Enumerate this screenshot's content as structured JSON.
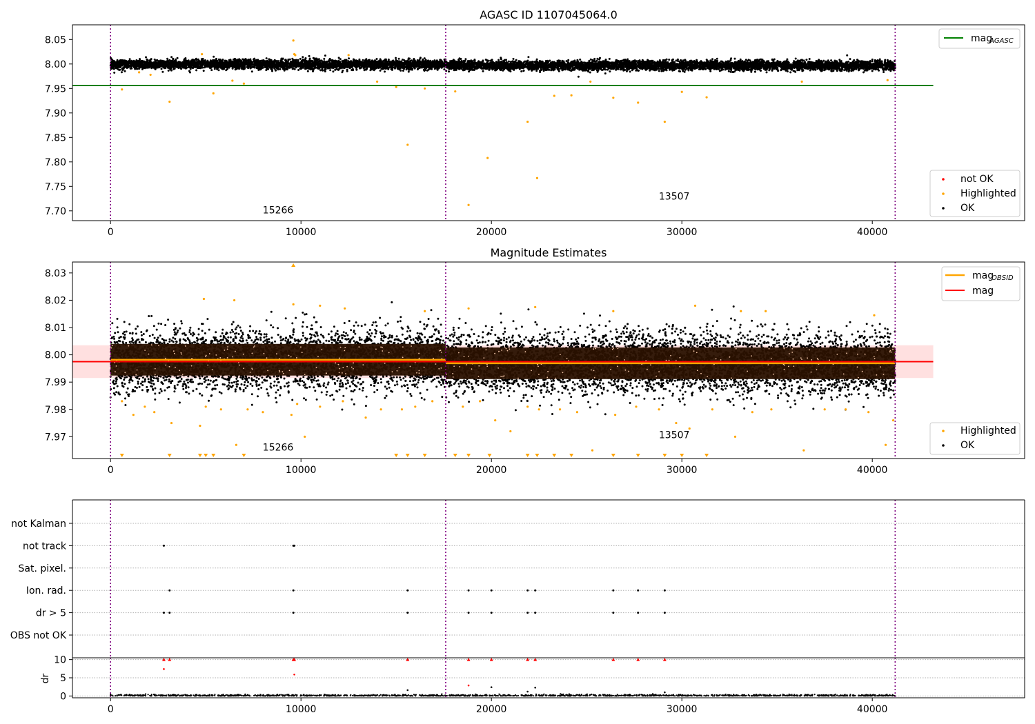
{
  "colors": {
    "ok": "#000000",
    "highlighted": "#ffa500",
    "not_ok": "#ff0000",
    "mag_agasc": "#008000",
    "mag_obsid": "#ffa500",
    "mag": "#ff0000",
    "mag_band": "#ffcccc",
    "obs_divider": "#800080",
    "grid": "#b0b0b0"
  },
  "chart_data": [
    {
      "type": "scatter",
      "title": "AGASC ID 1107045064.0",
      "xlim": [
        -2000,
        48000
      ],
      "ylim": [
        7.68,
        8.08
      ],
      "xticks": [
        0,
        10000,
        20000,
        30000,
        40000
      ],
      "xtick_labels": [
        "0",
        "10000",
        "20000",
        "30000",
        "40000"
      ],
      "yticks": [
        7.7,
        7.75,
        7.8,
        7.85,
        7.9,
        7.95,
        8.0,
        8.05
      ],
      "ytick_labels": [
        "7.70",
        "7.75",
        "7.80",
        "7.85",
        "7.90",
        "7.95",
        "8.00",
        "8.05"
      ],
      "legend_upper": {
        "position": "upper right",
        "entries": [
          {
            "label_main": "mag",
            "label_sub": "AGASC",
            "style": "line",
            "color_key": "mag_agasc"
          }
        ]
      },
      "legend_lower": {
        "position": "lower right",
        "entries": [
          {
            "label": "not OK",
            "style": "dot",
            "color_key": "not_ok"
          },
          {
            "label": "Highlighted",
            "style": "dot",
            "color_key": "highlighted"
          },
          {
            "label": "OK",
            "style": "dot",
            "color_key": "ok"
          }
        ]
      },
      "obs_boundaries": [
        0,
        17600,
        41200
      ],
      "obs_labels": [
        {
          "text": "15266",
          "x": 8800,
          "y": 7.695
        },
        {
          "text": "13507",
          "x": 29600,
          "y": 7.723
        }
      ],
      "mag_agasc": {
        "value": 7.956,
        "x_range": [
          -2000,
          43200
        ]
      },
      "ok_band": {
        "segments": [
          {
            "x_range": [
              0,
              17600
            ],
            "center": 7.999,
            "spread": 0.008
          },
          {
            "x_range": [
              17600,
              41200
            ],
            "center": 7.997,
            "spread": 0.008
          }
        ]
      },
      "highlighted": {
        "x": [
          600,
          3100,
          5400,
          6400,
          7000,
          9600,
          9650,
          14000,
          15000,
          15600,
          16500,
          18100,
          19800,
          21900,
          22400,
          23300,
          24200,
          25200,
          26400,
          27700,
          29100,
          30000,
          31300,
          36300,
          40800,
          4800,
          9700,
          12500,
          1500,
          2100
        ],
        "y": [
          7.948,
          7.923,
          7.94,
          7.966,
          7.96,
          8.048,
          8.02,
          7.964,
          7.953,
          7.835,
          7.95,
          7.944,
          7.808,
          7.882,
          7.767,
          7.935,
          7.936,
          7.964,
          7.931,
          7.921,
          7.882,
          7.943,
          7.932,
          7.964,
          7.967,
          8.02,
          8.018,
          8.018,
          7.983,
          7.978
        ]
      },
      "extra_highlighted": {
        "x": 18800,
        "y": 7.712
      }
    },
    {
      "type": "scatter",
      "title": "Magnitude Estimates",
      "xlim": [
        -2000,
        48000
      ],
      "ylim": [
        7.962,
        8.034
      ],
      "xticks": [
        0,
        10000,
        20000,
        30000,
        40000
      ],
      "xtick_labels": [
        "0",
        "10000",
        "20000",
        "30000",
        "40000"
      ],
      "yticks": [
        7.97,
        7.98,
        7.99,
        8.0,
        8.01,
        8.02,
        8.03
      ],
      "ytick_labels": [
        "7.97",
        "7.98",
        "7.99",
        "8.00",
        "8.01",
        "8.02",
        "8.03"
      ],
      "legend_upper": {
        "position": "upper right",
        "entries": [
          {
            "label_main": "mag",
            "label_sub": "OBSID",
            "style": "line",
            "color_key": "mag_obsid"
          },
          {
            "label": "mag",
            "style": "line",
            "color_key": "mag"
          }
        ]
      },
      "legend_lower": {
        "position": "lower right",
        "entries": [
          {
            "label": "Highlighted",
            "style": "dot",
            "color_key": "highlighted"
          },
          {
            "label": "OK",
            "style": "dot",
            "color_key": "ok"
          }
        ]
      },
      "obs_boundaries": [
        0,
        17600,
        41200
      ],
      "obs_labels": [
        {
          "text": "15266",
          "x": 8800,
          "y": 7.9649
        },
        {
          "text": "13507",
          "x": 29600,
          "y": 7.9695
        }
      ],
      "mag": {
        "value": 7.9975,
        "x_range": [
          -2000,
          43200
        ],
        "band": [
          7.9915,
          8.0035
        ]
      },
      "mag_obsid": [
        {
          "x_range": [
            0,
            17600
          ],
          "value": 7.9982
        },
        {
          "x_range": [
            17600,
            41200
          ],
          "value": 7.9969
        }
      ],
      "ok_band": {
        "segments": [
          {
            "x_range": [
              0,
              17600
            ],
            "center": 7.9982,
            "spread": 0.0055
          },
          {
            "x_range": [
              17600,
              41200
            ],
            "center": 7.9969,
            "spread": 0.0055
          }
        ]
      },
      "highlighted": {
        "x": [
          600,
          1200,
          1800,
          2300,
          3200,
          4700,
          5000,
          5800,
          6600,
          7200,
          8000,
          9500,
          9800,
          10200,
          11000,
          12200,
          13400,
          14200,
          15300,
          16000,
          16900,
          18500,
          19400,
          20200,
          21000,
          21900,
          22500,
          23600,
          24500,
          25300,
          26500,
          27600,
          28800,
          29700,
          30400,
          31600,
          32800,
          33700,
          34700,
          36400,
          37500,
          38600,
          39800,
          40700,
          41100,
          4900,
          6500,
          9600,
          11000,
          12300,
          16500,
          18800,
          22300,
          26400,
          30700,
          33100,
          34400,
          40100
        ],
        "y": [
          7.983,
          7.978,
          7.981,
          7.979,
          7.975,
          7.974,
          7.981,
          7.98,
          7.967,
          7.98,
          7.979,
          7.978,
          7.982,
          7.97,
          7.981,
          7.983,
          7.977,
          7.98,
          7.98,
          7.981,
          7.983,
          7.981,
          7.983,
          7.976,
          7.972,
          7.981,
          7.98,
          7.98,
          7.979,
          7.965,
          7.978,
          7.981,
          7.98,
          7.975,
          7.973,
          7.98,
          7.97,
          7.979,
          7.98,
          7.965,
          7.98,
          7.98,
          7.979,
          7.967,
          7.976,
          8.0205,
          8.02,
          8.0185,
          8.018,
          8.017,
          8.016,
          8.017,
          8.0175,
          8.016,
          8.018,
          8.016,
          8.016,
          8.0145
        ]
      },
      "clipped_low_x": [
        600,
        3100,
        4700,
        5000,
        5400,
        7000,
        15000,
        15600,
        16500,
        18100,
        18800,
        19900,
        21900,
        22400,
        23300,
        24200,
        26400,
        27700,
        29100,
        30000,
        31300
      ],
      "clipped_high_x": [
        9600
      ]
    },
    {
      "type": "scatter",
      "title": "",
      "xlim": [
        -2000,
        48000
      ],
      "categories": [
        "not Kalman",
        "not track",
        "Sat. pixel.",
        "Ion. rad.",
        "dr > 5",
        "OBS not OK"
      ],
      "obs_boundaries": [
        0,
        17600,
        41200
      ],
      "flag_points": {
        "not track": [
          2800,
          9600,
          9650
        ],
        "Ion. rad.": [
          3100,
          9600,
          15600,
          18800,
          20000,
          21900,
          22300,
          26400,
          27700,
          29100
        ],
        "dr > 5": [
          2800,
          3100,
          9600,
          15600,
          18800,
          20000,
          21900,
          22300,
          26400,
          27700,
          29100
        ],
        "not Kalman": [],
        "Sat. pixel.": [],
        "OBS not OK": []
      }
    },
    {
      "type": "scatter",
      "title": "",
      "ylabel": "dr",
      "xlim": [
        -2000,
        48000
      ],
      "ylim": [
        -0.5,
        10.5
      ],
      "xticks": [
        0,
        10000,
        20000,
        30000,
        40000
      ],
      "xtick_labels": [
        "0",
        "10000",
        "20000",
        "30000",
        "40000"
      ],
      "yticks": [
        0,
        5,
        10
      ],
      "ytick_labels": [
        "0",
        "5",
        "10"
      ],
      "obs_boundaries": [
        0,
        17600,
        41200
      ],
      "not_ok_clipped_x": [
        2800,
        3100,
        9600,
        9650,
        15600,
        18800,
        20000,
        21900,
        22300,
        26400,
        27700,
        29100
      ],
      "not_ok_points": {
        "x": [
          2800,
          9650,
          18800
        ],
        "y": [
          7.4,
          5.9,
          2.9
        ]
      },
      "ok_points": {
        "x": [
          15600,
          20000,
          21900,
          22300,
          29100
        ],
        "y": [
          1.6,
          2.4,
          1.2,
          2.3,
          1.0
        ]
      }
    }
  ]
}
